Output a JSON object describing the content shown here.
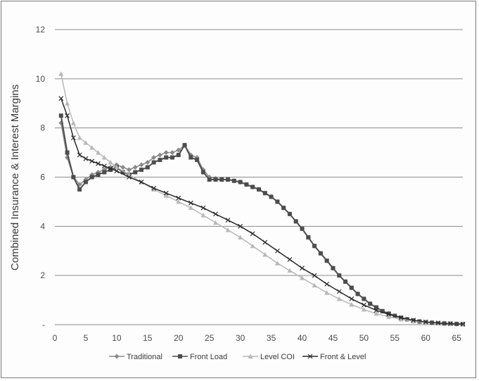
{
  "chart_data": {
    "type": "line",
    "title": "",
    "xlabel": "",
    "ylabel": "Combined Insurance & Interest Margins",
    "xlim": [
      0,
      66
    ],
    "ylim": [
      0,
      12
    ],
    "x_ticks": [
      0,
      5,
      10,
      15,
      20,
      25,
      30,
      35,
      40,
      45,
      50,
      55,
      60,
      65
    ],
    "y_ticks": [
      0,
      2,
      4,
      6,
      8,
      10,
      12
    ],
    "y_tick_labels": [
      "-",
      "2",
      "4",
      "6",
      "8",
      "10",
      "12"
    ],
    "grid": "horizontal",
    "legend_position": "bottom",
    "series": [
      {
        "name": "Traditional",
        "color": "#8a8a8a",
        "marker": "diamond",
        "x": [
          1,
          2,
          3,
          4,
          5,
          6,
          7,
          8,
          9,
          10,
          11,
          12,
          13,
          14,
          15,
          16,
          17,
          18,
          19,
          20,
          21,
          22,
          23,
          24,
          25,
          26,
          27,
          28,
          29,
          30,
          31,
          32,
          33,
          34,
          35,
          36,
          37,
          38,
          39,
          40,
          41,
          42,
          43,
          44,
          45,
          46,
          47,
          48,
          49,
          50,
          51,
          52,
          53,
          54,
          55,
          56,
          57,
          58,
          59,
          60,
          61,
          62,
          63,
          64,
          65,
          66
        ],
        "values": [
          8.2,
          6.8,
          6.0,
          5.7,
          5.9,
          6.1,
          6.2,
          6.3,
          6.4,
          6.5,
          6.4,
          6.3,
          6.4,
          6.5,
          6.6,
          6.8,
          6.9,
          7.0,
          7.0,
          7.1,
          7.3,
          6.9,
          6.8,
          6.3,
          6.0,
          5.95,
          5.9,
          5.9,
          5.85,
          5.8,
          5.7,
          5.6,
          5.5,
          5.35,
          5.2,
          5.0,
          4.75,
          4.5,
          4.2,
          3.9,
          3.55,
          3.2,
          2.9,
          2.6,
          2.3,
          2.0,
          1.75,
          1.5,
          1.25,
          1.05,
          0.85,
          0.7,
          0.55,
          0.45,
          0.36,
          0.28,
          0.22,
          0.17,
          0.13,
          0.1,
          0.08,
          0.06,
          0.05,
          0.04,
          0.03,
          0.02
        ]
      },
      {
        "name": "Front Load",
        "color": "#4d4d4d",
        "marker": "square",
        "x": [
          1,
          2,
          3,
          4,
          5,
          6,
          7,
          8,
          9,
          10,
          11,
          12,
          13,
          14,
          15,
          16,
          17,
          18,
          19,
          20,
          21,
          22,
          23,
          24,
          25,
          26,
          27,
          28,
          29,
          30,
          31,
          32,
          33,
          34,
          35,
          36,
          37,
          38,
          39,
          40,
          41,
          42,
          43,
          44,
          45,
          46,
          47,
          48,
          49,
          50,
          51,
          52,
          53,
          54,
          55,
          56,
          57,
          58,
          59,
          60,
          61,
          62,
          63,
          64,
          65,
          66
        ],
        "values": [
          8.5,
          7.0,
          6.0,
          5.5,
          5.8,
          6.0,
          6.1,
          6.2,
          6.3,
          6.4,
          6.2,
          6.1,
          6.2,
          6.3,
          6.4,
          6.6,
          6.7,
          6.8,
          6.8,
          6.9,
          7.3,
          6.8,
          6.7,
          6.2,
          5.9,
          5.9,
          5.9,
          5.9,
          5.85,
          5.8,
          5.7,
          5.6,
          5.5,
          5.35,
          5.2,
          5.0,
          4.75,
          4.5,
          4.2,
          3.9,
          3.55,
          3.2,
          2.9,
          2.6,
          2.3,
          2.0,
          1.75,
          1.5,
          1.25,
          1.05,
          0.85,
          0.7,
          0.55,
          0.45,
          0.36,
          0.28,
          0.22,
          0.17,
          0.13,
          0.1,
          0.08,
          0.06,
          0.05,
          0.04,
          0.03,
          0.02
        ]
      },
      {
        "name": "Level COI",
        "color": "#b8b8b8",
        "marker": "triangle",
        "x": [
          1,
          2,
          3,
          4,
          5,
          6,
          7,
          8,
          9,
          10,
          12,
          14,
          16,
          18,
          20,
          22,
          24,
          26,
          28,
          30,
          32,
          34,
          36,
          38,
          40,
          42,
          44,
          46,
          48,
          50,
          52,
          54,
          56,
          58,
          60,
          62,
          64,
          66
        ],
        "values": [
          10.2,
          9.0,
          8.2,
          7.6,
          7.4,
          7.2,
          7.0,
          6.8,
          6.6,
          6.4,
          6.1,
          5.8,
          5.5,
          5.25,
          5.0,
          4.75,
          4.45,
          4.15,
          3.85,
          3.55,
          3.2,
          2.85,
          2.5,
          2.2,
          1.9,
          1.6,
          1.3,
          1.05,
          0.82,
          0.62,
          0.45,
          0.32,
          0.22,
          0.14,
          0.09,
          0.06,
          0.04,
          0.02
        ]
      },
      {
        "name": "Front & Level",
        "color": "#2a2a2a",
        "marker": "x",
        "x": [
          1,
          2,
          3,
          4,
          5,
          6,
          7,
          8,
          9,
          10,
          12,
          14,
          16,
          18,
          20,
          22,
          24,
          26,
          28,
          30,
          32,
          34,
          36,
          38,
          40,
          42,
          44,
          46,
          48,
          50,
          52,
          54,
          56,
          58,
          60,
          62,
          64,
          66
        ],
        "values": [
          9.2,
          8.5,
          7.6,
          6.9,
          6.75,
          6.65,
          6.55,
          6.45,
          6.35,
          6.25,
          6.0,
          5.8,
          5.55,
          5.35,
          5.15,
          4.95,
          4.75,
          4.5,
          4.25,
          4.0,
          3.7,
          3.35,
          3.0,
          2.65,
          2.3,
          2.0,
          1.65,
          1.35,
          1.05,
          0.8,
          0.58,
          0.42,
          0.28,
          0.18,
          0.11,
          0.07,
          0.04,
          0.02
        ]
      }
    ]
  }
}
